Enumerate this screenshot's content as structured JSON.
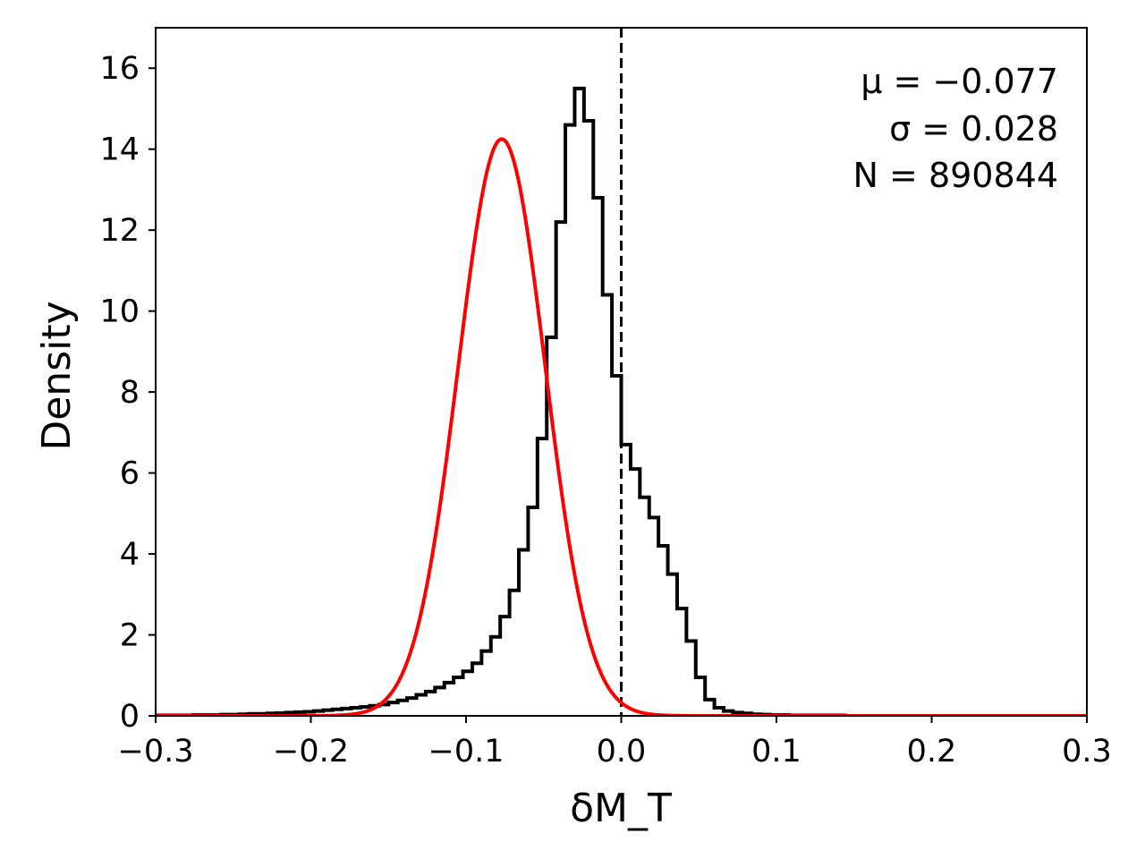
{
  "chart_data": {
    "type": "histogram",
    "xlabel": "δM_T",
    "ylabel": "Density",
    "xlim": [
      -0.3,
      0.3
    ],
    "ylim": [
      0,
      17
    ],
    "xticks": [
      {
        "value": -0.3,
        "label": "−0.3"
      },
      {
        "value": -0.2,
        "label": "−0.2"
      },
      {
        "value": -0.1,
        "label": "−0.1"
      },
      {
        "value": 0.0,
        "label": "0.0"
      },
      {
        "value": 0.1,
        "label": "0.1"
      },
      {
        "value": 0.2,
        "label": "0.2"
      },
      {
        "value": 0.3,
        "label": "0.3"
      }
    ],
    "yticks": [
      {
        "value": 0,
        "label": "0"
      },
      {
        "value": 2,
        "label": "2"
      },
      {
        "value": 4,
        "label": "4"
      },
      {
        "value": 6,
        "label": "6"
      },
      {
        "value": 8,
        "label": "8"
      },
      {
        "value": 10,
        "label": "10"
      },
      {
        "value": 12,
        "label": "12"
      },
      {
        "value": 14,
        "label": "14"
      },
      {
        "value": 16,
        "label": "16"
      }
    ],
    "histogram": {
      "bin_start": -0.3,
      "bin_width": 0.006,
      "color": "#000000",
      "densities": [
        0.01,
        0.01,
        0.01,
        0.01,
        0.02,
        0.02,
        0.02,
        0.03,
        0.03,
        0.04,
        0.05,
        0.05,
        0.06,
        0.07,
        0.08,
        0.09,
        0.1,
        0.12,
        0.14,
        0.16,
        0.18,
        0.2,
        0.22,
        0.25,
        0.28,
        0.33,
        0.38,
        0.44,
        0.52,
        0.6,
        0.7,
        0.82,
        0.95,
        1.1,
        1.3,
        1.6,
        1.95,
        2.45,
        3.1,
        4.1,
        5.15,
        6.85,
        9.35,
        12.2,
        14.6,
        15.5,
        14.7,
        12.8,
        10.4,
        8.4,
        6.7,
        6.1,
        5.4,
        4.9,
        4.2,
        3.5,
        2.65,
        1.85,
        0.95,
        0.4,
        0.2,
        0.12,
        0.08,
        0.06,
        0.04,
        0.03,
        0.02,
        0.02,
        0.01,
        0.01,
        0.01,
        0.01,
        0.01,
        0.01,
        0,
        0,
        0,
        0,
        0,
        0,
        0,
        0,
        0,
        0,
        0,
        0,
        0,
        0,
        0,
        0,
        0,
        0,
        0,
        0,
        0,
        0,
        0,
        0,
        0,
        0
      ]
    },
    "gaussian_fit": {
      "mu": -0.077,
      "sigma": 0.028,
      "color": "#ff0000"
    },
    "vline": {
      "x": 0.0,
      "style": "dashed",
      "color": "#000000"
    },
    "annotations": {
      "mu_text": "μ = −0.077",
      "sigma_text": "σ = 0.028",
      "n_text": "N = 890844"
    }
  }
}
